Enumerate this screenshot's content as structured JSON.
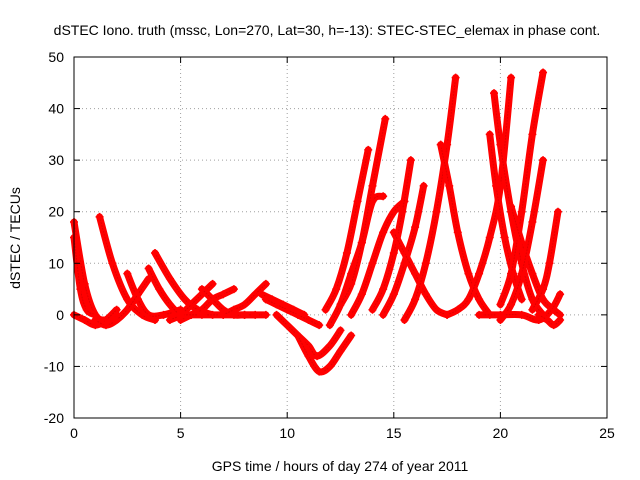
{
  "chart_data": {
    "type": "scatter",
    "title": "dSTEC Iono. truth (mssc, Lon=270, Lat=30, h=-13): STEC-STEC_elemax in phase cont.",
    "xlabel": "GPS time / hours of day 274 of year 2011",
    "ylabel": "dSTEC  / TECUs",
    "xlim": [
      0,
      25
    ],
    "ylim": [
      -20,
      50
    ],
    "xticks": [
      0,
      5,
      10,
      15,
      20,
      25
    ],
    "yticks": [
      -20,
      -10,
      0,
      10,
      20,
      30,
      40,
      50
    ],
    "grid": true,
    "legend": "none",
    "marker": "plus",
    "color": "#ff0000",
    "series": [
      {
        "x": [
          0.0,
          0.5,
          1.0,
          1.5,
          2.0
        ],
        "y": [
          18,
          6,
          0,
          -1,
          0
        ]
      },
      {
        "x": [
          0.0,
          0.3,
          0.6,
          1.0
        ],
        "y": [
          15,
          5,
          1,
          0
        ]
      },
      {
        "x": [
          0.0,
          0.5,
          1.0,
          1.5,
          2.0
        ],
        "y": [
          0,
          -1,
          -2,
          -1,
          1
        ]
      },
      {
        "x": [
          1.2,
          1.8,
          2.5,
          3.2,
          3.8
        ],
        "y": [
          19,
          10,
          3,
          0,
          -1
        ]
      },
      {
        "x": [
          1.0,
          1.5,
          2.0,
          2.5,
          3.0
        ],
        "y": [
          -1,
          -2,
          -1,
          1,
          4
        ]
      },
      {
        "x": [
          2.5,
          3.0,
          3.5,
          4.2,
          5.0
        ],
        "y": [
          8,
          3,
          0,
          0,
          1
        ]
      },
      {
        "x": [
          3.5,
          4.0,
          4.5,
          5.0,
          5.5
        ],
        "y": [
          9,
          5,
          2,
          0,
          0
        ]
      },
      {
        "x": [
          3.8,
          4.5,
          5.2,
          5.8,
          6.5
        ],
        "y": [
          12,
          7,
          3,
          1,
          0
        ]
      },
      {
        "x": [
          2.0,
          2.5,
          3.0,
          3.5
        ],
        "y": [
          -1,
          1,
          4,
          7
        ]
      },
      {
        "x": [
          4.5,
          5.0,
          5.5,
          6.0,
          6.5
        ],
        "y": [
          -1,
          0,
          2,
          4,
          6
        ]
      },
      {
        "x": [
          5.0,
          5.5,
          6.0,
          6.5,
          7.0,
          7.5
        ],
        "y": [
          -1,
          0,
          1,
          3,
          4,
          5
        ]
      },
      {
        "x": [
          5.0,
          6.0,
          7.0,
          8.0,
          9.0
        ],
        "y": [
          0,
          0,
          0,
          0,
          0
        ]
      },
      {
        "x": [
          6.0,
          6.5,
          7.0,
          7.5,
          8.0,
          8.5
        ],
        "y": [
          5,
          3,
          1,
          0,
          0,
          0
        ]
      },
      {
        "x": [
          7.0,
          7.5,
          8.0,
          8.5,
          9.0
        ],
        "y": [
          0,
          1,
          2,
          4,
          6
        ]
      },
      {
        "x": [
          8.8,
          9.3,
          9.8,
          10.3,
          10.8
        ],
        "y": [
          4,
          3,
          2,
          1,
          0
        ]
      },
      {
        "x": [
          9.0,
          9.5,
          10.0,
          10.5,
          11.0,
          11.5
        ],
        "y": [
          3,
          2,
          1,
          0,
          -1,
          -2
        ]
      },
      {
        "x": [
          9.5,
          10.0,
          10.5,
          11.0,
          11.4,
          12.0,
          12.5
        ],
        "y": [
          0,
          -2,
          -4,
          -6,
          -8,
          -6,
          -3
        ]
      },
      {
        "x": [
          10.5,
          11.0,
          11.5,
          12.0,
          12.5,
          13.0
        ],
        "y": [
          -4,
          -8,
          -11,
          -10,
          -7,
          -4
        ]
      },
      {
        "x": [
          11.8,
          12.3,
          12.8,
          13.3,
          13.8
        ],
        "y": [
          1,
          5,
          12,
          22,
          32
        ]
      },
      {
        "x": [
          12.0,
          12.5,
          13.0,
          13.5,
          14.0,
          14.5
        ],
        "y": [
          -2,
          2,
          8,
          14,
          22,
          23
        ]
      },
      {
        "x": [
          12.5,
          13.0,
          13.5,
          14.0,
          14.6
        ],
        "y": [
          2,
          6,
          14,
          25,
          38
        ]
      },
      {
        "x": [
          13.0,
          13.5,
          14.0,
          14.5,
          15.0,
          15.5
        ],
        "y": [
          0,
          4,
          10,
          16,
          20,
          22
        ]
      },
      {
        "x": [
          14.0,
          14.5,
          15.0,
          15.4,
          15.8
        ],
        "y": [
          1,
          5,
          12,
          20,
          30
        ]
      },
      {
        "x": [
          14.5,
          15.0,
          15.5,
          16.0,
          16.4
        ],
        "y": [
          0,
          4,
          10,
          17,
          25
        ]
      },
      {
        "x": [
          15.0,
          15.5,
          16.0,
          16.5,
          17.0,
          17.5
        ],
        "y": [
          16,
          12,
          8,
          4,
          1,
          0
        ]
      },
      {
        "x": [
          15.5,
          16.0,
          16.5,
          17.0,
          17.5,
          17.9
        ],
        "y": [
          -1,
          3,
          10,
          20,
          33,
          46
        ]
      },
      {
        "x": [
          17.2,
          17.6,
          18.0,
          18.5,
          19.0,
          19.5
        ],
        "y": [
          33,
          25,
          16,
          8,
          3,
          0
        ]
      },
      {
        "x": [
          17.5,
          18.0,
          18.5,
          19.0,
          19.5,
          20.0,
          20.5
        ],
        "y": [
          0,
          1,
          3,
          8,
          15,
          25,
          46
        ]
      },
      {
        "x": [
          19.5,
          19.8,
          20.2,
          20.6,
          21.0
        ],
        "y": [
          35,
          25,
          15,
          8,
          3
        ]
      },
      {
        "x": [
          19.7,
          20.0,
          20.5,
          21.0,
          21.5,
          22.0
        ],
        "y": [
          43,
          33,
          20,
          10,
          3,
          0
        ]
      },
      {
        "x": [
          20.0,
          20.5,
          21.0,
          21.5,
          22.0
        ],
        "y": [
          2,
          8,
          20,
          35,
          47
        ]
      },
      {
        "x": [
          20.5,
          21.0,
          21.5,
          22.0,
          22.5,
          22.8
        ],
        "y": [
          21,
          14,
          8,
          3,
          1,
          0
        ]
      },
      {
        "x": [
          20.0,
          20.5,
          21.0,
          21.5,
          22.0
        ],
        "y": [
          -1,
          2,
          8,
          18,
          30
        ]
      },
      {
        "x": [
          21.5,
          22.0,
          22.3,
          22.7
        ],
        "y": [
          1,
          5,
          10,
          20
        ]
      },
      {
        "x": [
          19.0,
          20.0,
          21.0,
          21.8,
          22.4,
          22.8
        ],
        "y": [
          0,
          0,
          0,
          -1,
          1,
          4
        ]
      },
      {
        "x": [
          21.8,
          22.2,
          22.5,
          22.8
        ],
        "y": [
          0,
          -1,
          -2,
          -1
        ]
      }
    ]
  }
}
